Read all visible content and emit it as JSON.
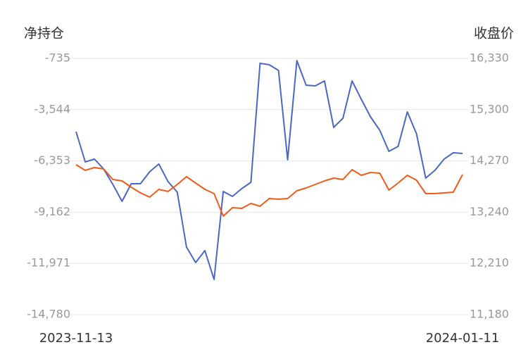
{
  "chart_data": {
    "type": "line",
    "y_label": "净持仓",
    "y2_label": "收盘价",
    "categories": [
      "2023-11-13",
      null,
      null,
      null,
      null,
      null,
      null,
      null,
      null,
      null,
      null,
      null,
      null,
      null,
      null,
      null,
      null,
      null,
      null,
      null,
      null,
      null,
      null,
      null,
      null,
      null,
      null,
      null,
      null,
      null,
      null,
      null,
      null,
      null,
      null,
      null,
      null,
      null,
      null,
      null,
      null,
      null,
      "2024-01-11"
    ],
    "series": [
      {
        "color": "#4a67c4",
        "axis": "y",
        "values": [
          -4748,
          -6407,
          -6253,
          -6793,
          -7642,
          -8568,
          -7603,
          -7603,
          -6947,
          -6523,
          -7487,
          -8066,
          -11076,
          -11925,
          -11269,
          -12851,
          -8028,
          -8298,
          -7873,
          -7526,
          -1005,
          -1082,
          -1391,
          -6291,
          -851,
          -2201,
          -2240,
          -1970,
          -4516,
          -4015,
          -1970,
          -2973,
          -3938,
          -4671,
          -5828,
          -5558,
          -3667,
          -4864,
          -7294,
          -6870,
          -6253,
          -5905,
          -5944
        ]
      },
      {
        "color": "#f05a1a",
        "axis": "y2",
        "values": [
          14194,
          14080,
          14137,
          14109,
          13897,
          13868,
          13741,
          13628,
          13543,
          13698,
          13656,
          13798,
          13953,
          13826,
          13698,
          13614,
          13161,
          13331,
          13317,
          13416,
          13359,
          13515,
          13500,
          13515,
          13670,
          13727,
          13798,
          13868,
          13925,
          13897,
          14095,
          13981,
          14038,
          14024,
          13684,
          13826,
          13981,
          13882,
          13614,
          13614,
          13628,
          13642,
          13996
        ]
      }
    ],
    "ylim": [
      -14780,
      -735
    ],
    "yticks": [
      -735,
      {
        "value": -3544,
        "label": "-3,544"
      },
      {
        "value": -6353,
        "label": "-6,353"
      },
      {
        "value": -9162,
        "label": "-9,162"
      },
      {
        "value": -11971,
        "label": "-11,971"
      },
      {
        "value": -14780,
        "label": "-14,780"
      }
    ],
    "y2lim": [
      11180,
      16330
    ],
    "y2ticks": [
      {
        "value": 16330,
        "label": "16,330"
      },
      {
        "value": 15300,
        "label": "15,300"
      },
      {
        "value": 14270,
        "label": "14,270"
      },
      {
        "value": 13240,
        "label": "13,240"
      },
      {
        "value": 12210,
        "label": "12,210"
      },
      {
        "value": 11180,
        "label": "11,180"
      }
    ],
    "grid": true
  }
}
